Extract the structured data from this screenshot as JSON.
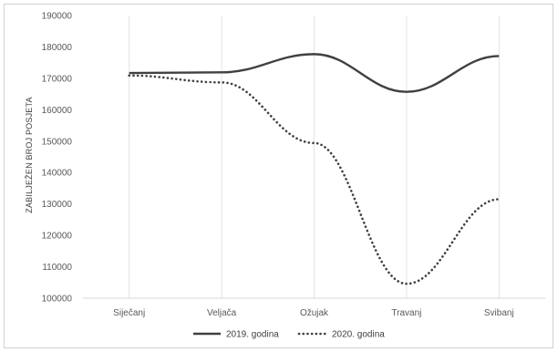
{
  "chart_data": {
    "type": "line",
    "title": "",
    "xlabel": "",
    "ylabel": "ZABILJEŽEN BROJ POSJETA",
    "categories": [
      "Siječanj",
      "Veljača",
      "Ožujak",
      "Travanj",
      "Svibanj"
    ],
    "ylim": [
      100000,
      190000
    ],
    "yticks": [
      "100000",
      "110000",
      "120000",
      "130000",
      "140000",
      "150000",
      "160000",
      "170000",
      "180000",
      "190000"
    ],
    "grid": "vertical",
    "legend": "bottom",
    "series": [
      {
        "name": "2019. godina",
        "style": "solid",
        "color": "#404040",
        "values": [
          171700,
          171900,
          177700,
          165700,
          177100
        ]
      },
      {
        "name": "2020. godina",
        "style": "dotted",
        "color": "#404040",
        "values": [
          170900,
          168700,
          149400,
          104600,
          131500
        ]
      }
    ]
  }
}
